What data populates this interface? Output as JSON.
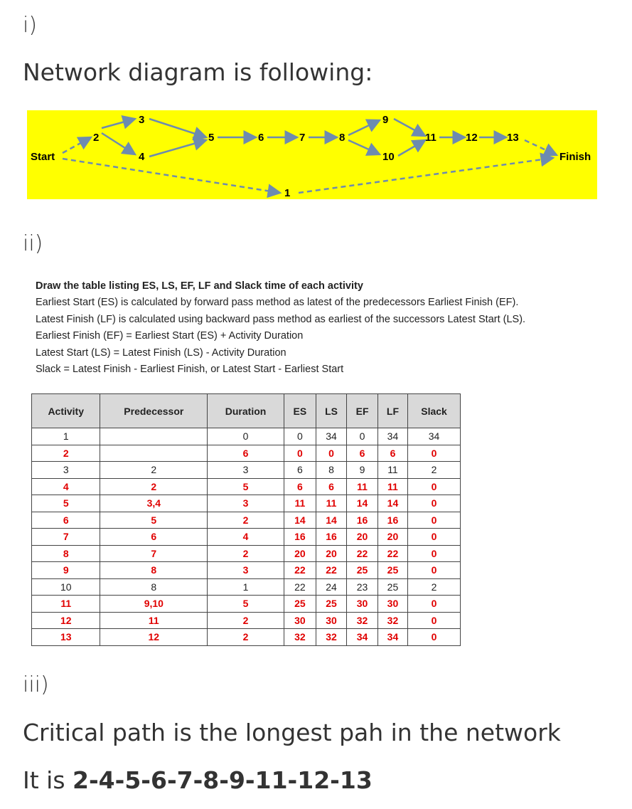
{
  "sections": {
    "i": {
      "label": "i)",
      "heading": "Network diagram is following:"
    },
    "ii": {
      "label": "ii)"
    },
    "iii": {
      "label": "iii)",
      "line1": "Critical path is the longest pah in the network",
      "line2_prefix": "It is ",
      "critical_path": "2-4-5-6-7-8-9-11-12-13"
    }
  },
  "diagram": {
    "background": "#ffff00",
    "edge_color": "#6d8bb0",
    "nodes": {
      "start": "Start",
      "finish": "Finish",
      "n1": "1",
      "n2": "2",
      "n3": "3",
      "n4": "4",
      "n5": "5",
      "n6": "6",
      "n7": "7",
      "n8": "8",
      "n9": "9",
      "n10": "10",
      "n11": "11",
      "n12": "12",
      "n13": "13"
    }
  },
  "instructions": {
    "title": "Draw the table listing ES, LS, EF, LF and Slack time of each activity",
    "lines": [
      "Earliest Start (ES) is calculated by forward pass method as latest of the predecessors Earliest Finish (EF).",
      "Latest Finish (LF) is calculated using backward pass method as earliest of the successors Latest Start (LS).",
      "Earliest Finish (EF) = Earliest Start (ES) + Activity Duration",
      "Latest Start (LS) = Latest Finish (LS) - Activity Duration",
      "Slack = Latest Finish - Earliest Finish,  or  Latest Start - Earliest Start"
    ]
  },
  "table": {
    "headers": [
      "Activity",
      "Predecessor",
      "Duration",
      "ES",
      "LS",
      "EF",
      "LF",
      "Slack"
    ],
    "critical_color": "#e00000",
    "rows": [
      {
        "critical": false,
        "cells": [
          "1",
          "",
          "0",
          "0",
          "34",
          "0",
          "34",
          "34"
        ]
      },
      {
        "critical": true,
        "cells": [
          "2",
          "",
          "6",
          "0",
          "0",
          "6",
          "6",
          "0"
        ]
      },
      {
        "critical": false,
        "cells": [
          "3",
          "2",
          "3",
          "6",
          "8",
          "9",
          "11",
          "2"
        ]
      },
      {
        "critical": true,
        "cells": [
          "4",
          "2",
          "5",
          "6",
          "6",
          "11",
          "11",
          "0"
        ]
      },
      {
        "critical": true,
        "cells": [
          "5",
          "3,4",
          "3",
          "11",
          "11",
          "14",
          "14",
          "0"
        ]
      },
      {
        "critical": true,
        "cells": [
          "6",
          "5",
          "2",
          "14",
          "14",
          "16",
          "16",
          "0"
        ]
      },
      {
        "critical": true,
        "cells": [
          "7",
          "6",
          "4",
          "16",
          "16",
          "20",
          "20",
          "0"
        ]
      },
      {
        "critical": true,
        "cells": [
          "8",
          "7",
          "2",
          "20",
          "20",
          "22",
          "22",
          "0"
        ]
      },
      {
        "critical": true,
        "cells": [
          "9",
          "8",
          "3",
          "22",
          "22",
          "25",
          "25",
          "0"
        ]
      },
      {
        "critical": false,
        "cells": [
          "10",
          "8",
          "1",
          "22",
          "24",
          "23",
          "25",
          "2"
        ]
      },
      {
        "critical": true,
        "cells": [
          "11",
          "9,10",
          "5",
          "25",
          "25",
          "30",
          "30",
          "0"
        ]
      },
      {
        "critical": true,
        "cells": [
          "12",
          "11",
          "2",
          "30",
          "30",
          "32",
          "32",
          "0"
        ]
      },
      {
        "critical": true,
        "cells": [
          "13",
          "12",
          "2",
          "32",
          "32",
          "34",
          "34",
          "0"
        ]
      }
    ]
  }
}
